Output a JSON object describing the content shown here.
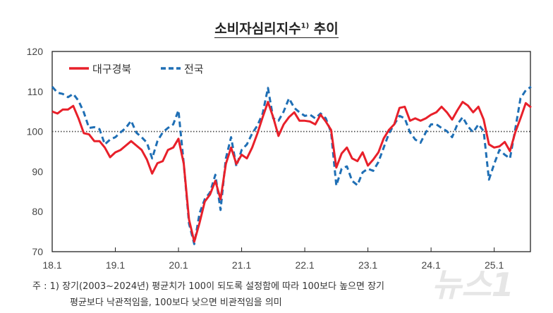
{
  "title": "소비자심리지수",
  "title_sup": "1)",
  "title_suffix": " 추이",
  "chart_data": {
    "type": "line",
    "x_tick_labels": [
      "18.1",
      "19.1",
      "20.1",
      "21.1",
      "22.1",
      "23.1",
      "24.1",
      "25.1"
    ],
    "x_start": "2018.1",
    "x_end": "2025.8",
    "x_frequency": "monthly",
    "ylim": [
      70,
      120
    ],
    "y_ticks": [
      70,
      80,
      90,
      100,
      110,
      120
    ],
    "reference_line": 100,
    "legend_position": "top-left",
    "grid": false,
    "series": [
      {
        "name": "대구경북",
        "color": "#e8202a",
        "style": "solid",
        "values": [
          105.0,
          104.5,
          105.5,
          105.5,
          106.4,
          103.3,
          99.6,
          99.3,
          97.6,
          97.6,
          96.0,
          93.6,
          94.8,
          95.4,
          96.5,
          97.6,
          96.5,
          95.4,
          93.0,
          89.5,
          92.1,
          92.6,
          95.4,
          96.0,
          98.2,
          92.0,
          78.0,
          72.5,
          77.2,
          82.5,
          84.3,
          87.7,
          83.1,
          91.9,
          96.0,
          91.9,
          94.2,
          93.3,
          96.0,
          99.5,
          103.6,
          107.4,
          103.6,
          98.9,
          101.8,
          103.6,
          104.8,
          102.7,
          102.7,
          102.5,
          101.8,
          104.2,
          102.5,
          100.4,
          91.0,
          94.5,
          96.0,
          93.3,
          92.6,
          94.8,
          91.5,
          93.0,
          94.8,
          98.3,
          100.4,
          101.8,
          105.9,
          106.2,
          102.7,
          103.3,
          102.7,
          103.3,
          104.2,
          104.8,
          106.2,
          104.8,
          103.0,
          105.3,
          107.4,
          106.5,
          104.8,
          106.2,
          103.0,
          96.8,
          96.0,
          96.3,
          97.4,
          95.1,
          99.8,
          103.3,
          107.1,
          106.0
        ]
      },
      {
        "name": "전국",
        "color": "#1f6fb5",
        "style": "dashed",
        "values": [
          111.2,
          109.7,
          109.4,
          108.6,
          109.4,
          107.7,
          104.8,
          100.9,
          101.1,
          100.6,
          96.8,
          98.0,
          98.6,
          99.8,
          100.9,
          102.7,
          99.7,
          98.6,
          97.2,
          93.3,
          97.6,
          99.8,
          100.9,
          101.8,
          105.3,
          92.0,
          77.0,
          71.9,
          79.6,
          83.1,
          84.8,
          89.2,
          80.4,
          93.3,
          98.6,
          91.3,
          95.4,
          96.8,
          99.5,
          101.5,
          104.5,
          110.9,
          103.3,
          102.7,
          105.0,
          108.3,
          105.9,
          104.8,
          103.9,
          104.2,
          103.3,
          104.5,
          103.3,
          99.8,
          86.5,
          90.7,
          91.3,
          87.7,
          86.6,
          89.8,
          90.7,
          90.2,
          92.4,
          96.0,
          99.5,
          101.8,
          103.9,
          103.3,
          99.8,
          98.0,
          97.2,
          99.8,
          101.8,
          101.8,
          100.9,
          100.1,
          98.6,
          101.8,
          103.6,
          101.3,
          99.8,
          101.8,
          100.1,
          88.0,
          91.9,
          95.4,
          94.2,
          93.3,
          100.6,
          108.3,
          110.3,
          111.2
        ]
      }
    ]
  },
  "footnote": {
    "line1": "주 : 1) 장기(2003~2024년) 평균치가 100이 되도록 설정함에 따라 100보다 높으면 장기",
    "line2": "평균보다 낙관적임을, 100보다 낮으면 비관적임을 의미"
  },
  "watermark": "뉴스1"
}
